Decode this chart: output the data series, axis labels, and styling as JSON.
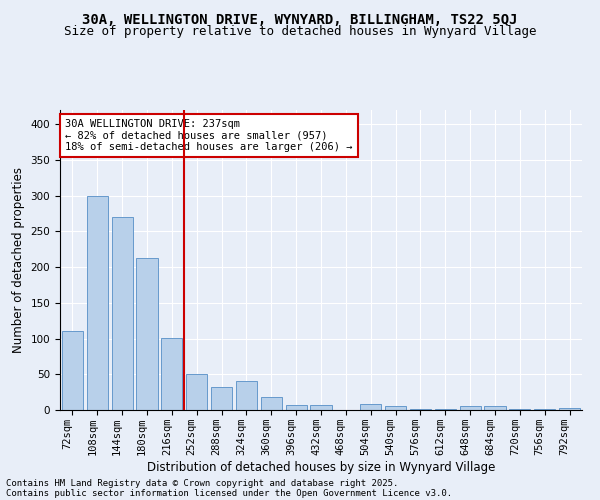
{
  "title": "30A, WELLINGTON DRIVE, WYNYARD, BILLINGHAM, TS22 5QJ",
  "subtitle": "Size of property relative to detached houses in Wynyard Village",
  "xlabel": "Distribution of detached houses by size in Wynyard Village",
  "ylabel": "Number of detached properties",
  "footnote1": "Contains HM Land Registry data © Crown copyright and database right 2025.",
  "footnote2": "Contains public sector information licensed under the Open Government Licence v3.0.",
  "annotation_line1": "30A WELLINGTON DRIVE: 237sqm",
  "annotation_line2": "← 82% of detached houses are smaller (957)",
  "annotation_line3": "18% of semi-detached houses are larger (206) →",
  "bar_color": "#b8d0ea",
  "bar_edge_color": "#6699cc",
  "vline_color": "#cc0000",
  "annotation_box_edgecolor": "#cc0000",
  "background_color": "#e8eef8",
  "grid_color": "#ffffff",
  "categories": [
    "72sqm",
    "108sqm",
    "144sqm",
    "180sqm",
    "216sqm",
    "252sqm",
    "288sqm",
    "324sqm",
    "360sqm",
    "396sqm",
    "432sqm",
    "468sqm",
    "504sqm",
    "540sqm",
    "576sqm",
    "612sqm",
    "648sqm",
    "684sqm",
    "720sqm",
    "756sqm",
    "792sqm"
  ],
  "values": [
    110,
    299,
    270,
    213,
    101,
    51,
    32,
    41,
    18,
    7,
    7,
    0,
    8,
    5,
    2,
    1,
    5,
    5,
    1,
    1,
    3
  ],
  "ylim": [
    0,
    420
  ],
  "yticks": [
    0,
    50,
    100,
    150,
    200,
    250,
    300,
    350,
    400
  ],
  "vline_position": 4.5,
  "title_fontsize": 10,
  "subtitle_fontsize": 9,
  "axis_label_fontsize": 8.5,
  "tick_fontsize": 7.5,
  "annotation_fontsize": 7.5,
  "footnote_fontsize": 6.5
}
